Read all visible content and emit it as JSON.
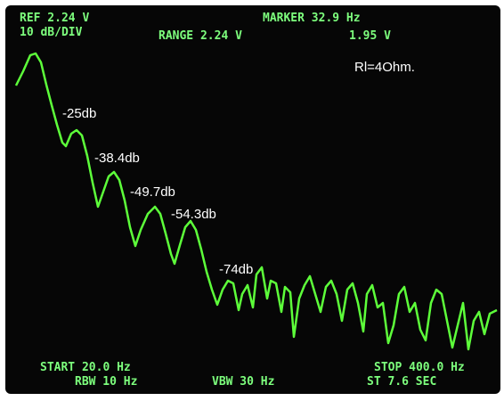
{
  "screen": {
    "header": {
      "ref": "REF 2.24 V",
      "scale": "10 dB/DIV",
      "range": "RANGE 2.24 V",
      "marker": "MARKER 32.9 Hz",
      "marker_level": "1.95 V"
    },
    "note": "Rl=4Ohm.",
    "annotations": [
      "-25db",
      "-38.4db",
      "-49.7db",
      "-54.3db",
      "-74db"
    ],
    "footer": {
      "start": "START 20.0 Hz",
      "rbw": "RBW 10 Hz",
      "vbw": "VBW 30 Hz",
      "stop": "STOP 400.0 Hz",
      "sweep": "ST 7.6 SEC"
    }
  }
}
